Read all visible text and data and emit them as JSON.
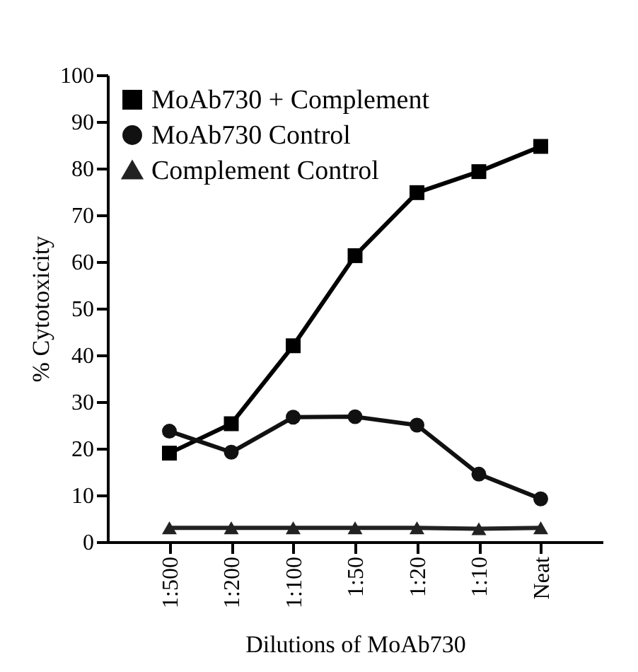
{
  "chart_data": {
    "type": "line",
    "xlabel": "Dilutions of MoAb730",
    "ylabel": "% Cytotoxicity",
    "categories": [
      "1:500",
      "1:200",
      "1:100",
      "1:50",
      "1:20",
      "1:10",
      "Neat"
    ],
    "series": [
      {
        "name": "MoAb730 + Complement",
        "color": "#000000",
        "marker": "square",
        "values": [
          19,
          25.3,
          42,
          61.3,
          74.8,
          79.3,
          84.7
        ]
      },
      {
        "name": "MoAb730  Control",
        "color": "#111111",
        "marker": "circle",
        "values": [
          23.7,
          19.2,
          26.7,
          26.8,
          25,
          14.5,
          9.2
        ]
      },
      {
        "name": "Complement  Control",
        "color": "#222222",
        "marker": "triangle",
        "values": [
          3,
          3,
          3,
          3,
          3,
          2.8,
          3
        ]
      }
    ],
    "ylim": [
      0,
      100
    ],
    "yticks": [
      0,
      10,
      20,
      30,
      40,
      50,
      60,
      70,
      80,
      90,
      100
    ],
    "grid": false,
    "legend": "top left",
    "line_style": "solid"
  }
}
